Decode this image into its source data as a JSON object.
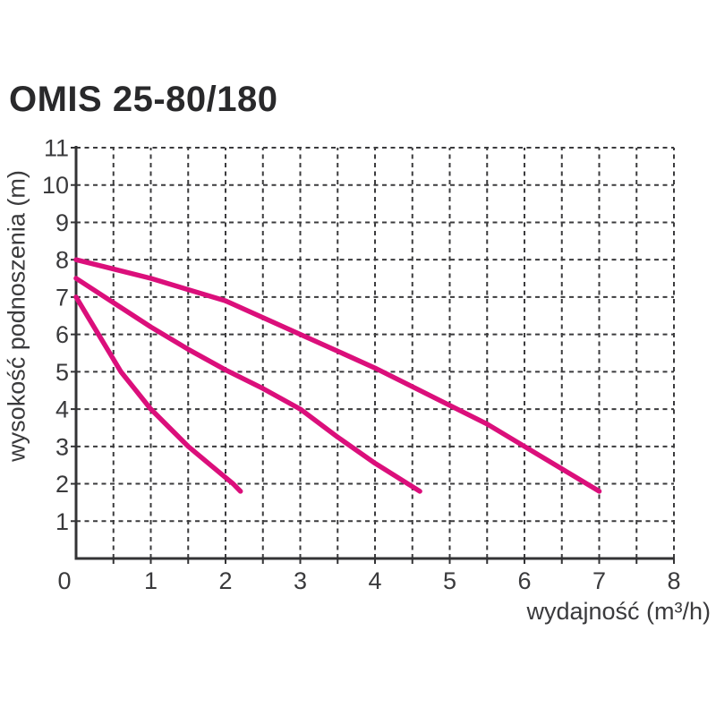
{
  "title": "OMIS 25-80/180",
  "chart_data": {
    "type": "line",
    "title": "OMIS 25-80/180",
    "xlabel": "wydajność (m³/h)",
    "ylabel": "wysokość podnoszenia (m)",
    "xlim": [
      0,
      8
    ],
    "ylim": [
      0,
      11
    ],
    "x_tick_labels": [
      "0",
      "1",
      "2",
      "3",
      "4",
      "5",
      "6",
      "7",
      "8"
    ],
    "y_tick_labels": [
      "1",
      "2",
      "3",
      "4",
      "5",
      "6",
      "7",
      "8",
      "9",
      "10",
      "11"
    ],
    "x_major_step": 1,
    "x_minor_step": 0.5,
    "y_major_step": 1,
    "grid": "dashed",
    "legend_position": "none",
    "colors": {
      "curve": "#db0f7b",
      "grid": "#3b3b3d",
      "axis": "#333335",
      "text": "#3a3a3c",
      "title": "#29292b",
      "background": "#ffffff"
    },
    "series": [
      {
        "name": "curve-1",
        "points": [
          [
            0,
            7.0
          ],
          [
            0.15,
            6.5
          ],
          [
            0.3,
            6.0
          ],
          [
            0.45,
            5.5
          ],
          [
            0.6,
            5.0
          ],
          [
            0.8,
            4.5
          ],
          [
            1.0,
            4.0
          ],
          [
            1.25,
            3.5
          ],
          [
            1.5,
            3.0
          ],
          [
            1.8,
            2.5
          ],
          [
            2.1,
            2.0
          ],
          [
            2.2,
            1.8
          ]
        ]
      },
      {
        "name": "curve-2",
        "points": [
          [
            0,
            7.5
          ],
          [
            0.5,
            6.85
          ],
          [
            1.0,
            6.2
          ],
          [
            1.5,
            5.6
          ],
          [
            2.0,
            5.05
          ],
          [
            2.5,
            4.55
          ],
          [
            3.0,
            4.0
          ],
          [
            3.5,
            3.25
          ],
          [
            4.0,
            2.55
          ],
          [
            4.6,
            1.8
          ]
        ]
      },
      {
        "name": "curve-3",
        "points": [
          [
            0,
            8.0
          ],
          [
            0.5,
            7.75
          ],
          [
            1.0,
            7.5
          ],
          [
            1.5,
            7.2
          ],
          [
            2.0,
            6.9
          ],
          [
            2.5,
            6.45
          ],
          [
            3.0,
            6.0
          ],
          [
            3.5,
            5.55
          ],
          [
            4.0,
            5.1
          ],
          [
            4.5,
            4.6
          ],
          [
            5.0,
            4.1
          ],
          [
            5.5,
            3.6
          ],
          [
            6.0,
            3.0
          ],
          [
            6.5,
            2.4
          ],
          [
            7.0,
            1.8
          ]
        ]
      }
    ]
  }
}
